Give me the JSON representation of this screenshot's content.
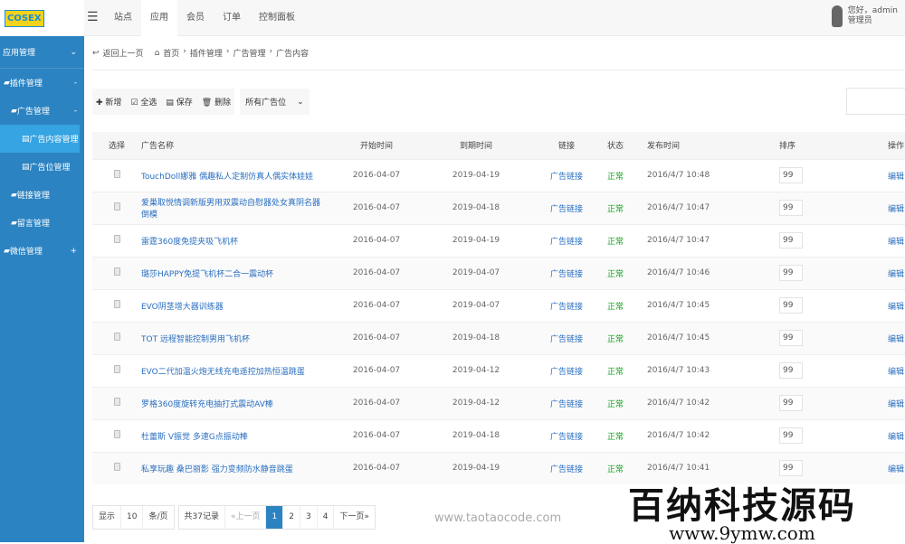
{
  "app": {
    "logo_text": "COSEX",
    "nav": [
      "站点",
      "应用",
      "会员",
      "订单",
      "控制面板"
    ],
    "nav_active": 1,
    "user": {
      "greeting": "您好，admin",
      "role": "管理员"
    }
  },
  "sidebar": {
    "header": "应用管理",
    "items": [
      {
        "label": "插件管理",
        "sign": "-",
        "level": 1
      },
      {
        "label": "广告管理",
        "sign": "-",
        "level": 2
      },
      {
        "label": "广告内容管理",
        "sign": "",
        "level": 3,
        "active": true
      },
      {
        "label": "广告位管理",
        "sign": "",
        "level": 3
      },
      {
        "label": "链接管理",
        "sign": "",
        "level": 2
      },
      {
        "label": "留言管理",
        "sign": "",
        "level": 2
      },
      {
        "label": "微信管理",
        "sign": "+",
        "level": 1
      }
    ]
  },
  "breadcrumb": {
    "back": "返回上一页",
    "items": [
      "首页",
      "插件管理",
      "广告管理",
      "广告内容"
    ]
  },
  "toolbar": {
    "add": "新增",
    "select_all": "全选",
    "save": "保存",
    "delete": "删除",
    "filter_value": "所有广告位"
  },
  "table": {
    "headers": [
      "选择",
      "广告名称",
      "开始时间",
      "到期时间",
      "链接",
      "状态",
      "发布时间",
      "排序",
      "操作"
    ],
    "rows": [
      {
        "name": "TouchDoll娜雅 偶趣私人定制仿真人偶实体娃娃",
        "start": "2016-04-07",
        "end": "2019-04-19",
        "link": "广告链接",
        "status": "正常",
        "published": "2016/4/7 10:48",
        "sort": "99",
        "action": "编辑"
      },
      {
        "name": "爱巢取悦情调新版男用双震动自慰器处女真阴名器倒模",
        "start": "2016-04-07",
        "end": "2019-04-18",
        "link": "广告链接",
        "status": "正常",
        "published": "2016/4/7 10:47",
        "sort": "99",
        "action": "编辑"
      },
      {
        "name": "雷霆360度免提夹吸飞机杯",
        "start": "2016-04-07",
        "end": "2019-04-19",
        "link": "广告链接",
        "status": "正常",
        "published": "2016/4/7 10:47",
        "sort": "99",
        "action": "编辑"
      },
      {
        "name": "璐莎HAPPY免提飞机杯二合一震动杯",
        "start": "2016-04-07",
        "end": "2019-04-07",
        "link": "广告链接",
        "status": "正常",
        "published": "2016/4/7 10:46",
        "sort": "99",
        "action": "编辑"
      },
      {
        "name": "EVO阴茎增大器训练器",
        "start": "2016-04-07",
        "end": "2019-04-07",
        "link": "广告链接",
        "status": "正常",
        "published": "2016/4/7 10:45",
        "sort": "99",
        "action": "编辑"
      },
      {
        "name": "TOT 远程智能控制男用飞机杯",
        "start": "2016-04-07",
        "end": "2019-04-18",
        "link": "广告链接",
        "status": "正常",
        "published": "2016/4/7 10:45",
        "sort": "99",
        "action": "编辑"
      },
      {
        "name": "EVO二代加温火炮无线充电遥控加热恒温跳蛋",
        "start": "2016-04-07",
        "end": "2019-04-12",
        "link": "广告链接",
        "status": "正常",
        "published": "2016/4/7 10:43",
        "sort": "99",
        "action": "编辑"
      },
      {
        "name": "罗格360度旋转充电抽打式震动AV棒",
        "start": "2016-04-07",
        "end": "2019-04-12",
        "link": "广告链接",
        "status": "正常",
        "published": "2016/4/7 10:42",
        "sort": "99",
        "action": "编辑"
      },
      {
        "name": "杜蕾斯 V振觉 多速G点振动棒",
        "start": "2016-04-07",
        "end": "2019-04-18",
        "link": "广告链接",
        "status": "正常",
        "published": "2016/4/7 10:42",
        "sort": "99",
        "action": "编辑"
      },
      {
        "name": "私享玩趣 桑巴丽影 强力变频防水静音跳蛋",
        "start": "2016-04-07",
        "end": "2019-04-19",
        "link": "广告链接",
        "status": "正常",
        "published": "2016/4/7 10:41",
        "sort": "99",
        "action": "编辑"
      }
    ]
  },
  "pager": {
    "show": "显示",
    "per_page": "10",
    "unit": "条/页",
    "total": "共37记录",
    "prev": "«上一页",
    "pages": [
      "1",
      "2",
      "3",
      "4"
    ],
    "current": "1",
    "next": "下一页»"
  },
  "watermarks": {
    "site": "www.taotaocode.com",
    "brand": "百纳科技源码",
    "brand_url": "www.9ymw.com"
  },
  "colors": {
    "sidebar": "#2b83c2",
    "active": "#36a3e2",
    "link": "#2a6fc0",
    "status_ok": "#14a01e"
  }
}
